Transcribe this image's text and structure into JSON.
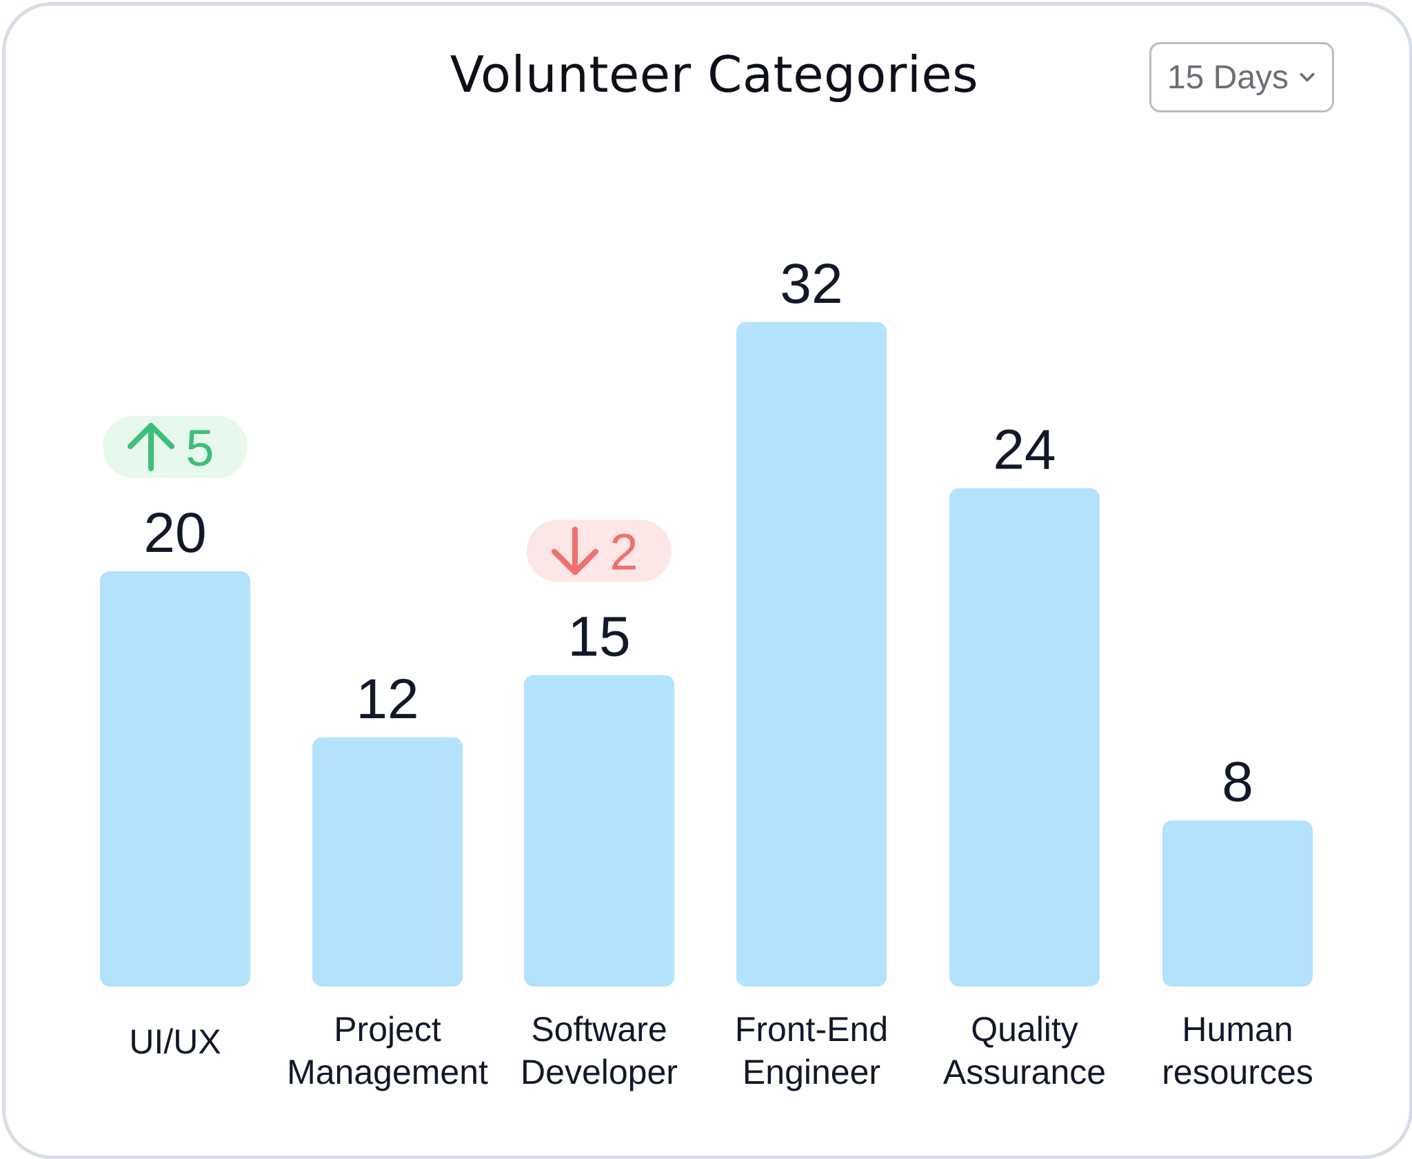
{
  "card": {
    "title": "Volunteer Categories",
    "period_select": {
      "label": "15 Days",
      "icon": "chevron-down-icon"
    }
  },
  "colors": {
    "bar": "#b3e2fd",
    "up_badge_bg": "#e6f9ec",
    "up_badge_fg": "#3dbf78",
    "down_badge_bg": "#fde6e6",
    "down_badge_fg": "#f07070",
    "border": "#d6dde8"
  },
  "chart_data": {
    "type": "bar",
    "title": "Volunteer Categories",
    "categories": [
      [
        "UI/UX"
      ],
      [
        "Project",
        "Management"
      ],
      [
        "Software",
        "Developer"
      ],
      [
        "Front-End",
        "Engineer"
      ],
      [
        "Quality",
        "Assurance"
      ],
      [
        "Human",
        "resources"
      ]
    ],
    "values": [
      20,
      12,
      15,
      32,
      24,
      8
    ],
    "changes": [
      {
        "direction": "up",
        "value": 5,
        "icon": "arrow-up-icon"
      },
      null,
      {
        "direction": "down",
        "value": 2,
        "icon": "arrow-down-icon"
      },
      null,
      null,
      null
    ],
    "xlabel": "",
    "ylabel": "",
    "grid": false,
    "legend": "none"
  }
}
